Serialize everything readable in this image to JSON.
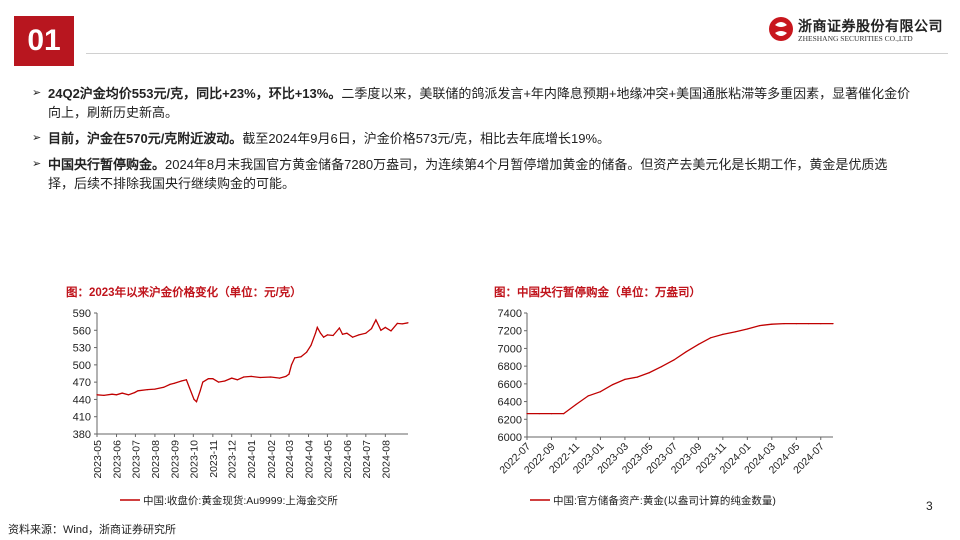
{
  "section_number": "01",
  "logo": {
    "name_cn": "浙商证券股份有限公司",
    "name_en": "ZHESHANG SECURITIES CO.,LTD"
  },
  "bullets": [
    {
      "bold": "24Q2沪金均价553元/克，同比+23%，环比+13%。",
      "text": "二季度以来，美联储的鸽派发言+年内降息预期+地缘冲突+美国通胀粘滞等多重因素，显著催化金价向上，刷新历史新高。"
    },
    {
      "bold": "目前，沪金在570元/克附近波动。",
      "text": "截至2024年9月6日，沪金价格573元/克，相比去年底增长19%。"
    },
    {
      "bold": "中国央行暂停购金。",
      "text": "2024年8月末我国官方黄金储备7280万盎司，为连续第4个月暂停增加黄金的储备。但资产去美元化是长期工作，黄金是优质选择，后续不排除我国央行继续购金的可能。"
    }
  ],
  "source": "资料来源：Wind，浙商证券研究所",
  "page_number": "3",
  "colors": {
    "accent": "#b8161f",
    "title_red": "#c0141c",
    "line": "#c00000"
  },
  "chart_data": [
    {
      "type": "line",
      "title": "图：2023年以来沪金价格变化（单位：元/克）",
      "x_ticks": [
        "2023-05",
        "2023-06",
        "2023-07",
        "2023-08",
        "2023-09",
        "2023-10",
        "2023-11",
        "2023-12",
        "2024-01",
        "2024-02",
        "2024-03",
        "2024-04",
        "2024-05",
        "2024-06",
        "2024-07",
        "2024-08"
      ],
      "ylim": [
        380,
        590
      ],
      "y_ticks": [
        380,
        410,
        440,
        470,
        500,
        530,
        560,
        590
      ],
      "x_range": [
        "2023-05-01",
        "2024-09-06"
      ],
      "series": [
        {
          "name": "中国:收盘价:黄金现货:Au9999:上海金交所",
          "points": [
            [
              "2023-05-01",
              448
            ],
            [
              "2023-05-12",
              447
            ],
            [
              "2023-05-25",
              449
            ],
            [
              "2023-06-01",
              448
            ],
            [
              "2023-06-10",
              451
            ],
            [
              "2023-06-20",
              448
            ],
            [
              "2023-06-30",
              452
            ],
            [
              "2023-07-05",
              455
            ],
            [
              "2023-07-20",
              457
            ],
            [
              "2023-08-01",
              458
            ],
            [
              "2023-08-15",
              461
            ],
            [
              "2023-08-25",
              466
            ],
            [
              "2023-09-01",
              468
            ],
            [
              "2023-09-12",
              472
            ],
            [
              "2023-09-20",
              474
            ],
            [
              "2023-09-25",
              460
            ],
            [
              "2023-10-02",
              440
            ],
            [
              "2023-10-06",
              436
            ],
            [
              "2023-10-12",
              455
            ],
            [
              "2023-10-16",
              470
            ],
            [
              "2023-10-25",
              476
            ],
            [
              "2023-11-01",
              476
            ],
            [
              "2023-11-10",
              470
            ],
            [
              "2023-11-20",
              472
            ],
            [
              "2023-12-01",
              477
            ],
            [
              "2023-12-10",
              474
            ],
            [
              "2023-12-20",
              479
            ],
            [
              "2024-01-01",
              480
            ],
            [
              "2024-01-15",
              478
            ],
            [
              "2024-02-01",
              479
            ],
            [
              "2024-02-15",
              477
            ],
            [
              "2024-02-25",
              480
            ],
            [
              "2024-03-01",
              484
            ],
            [
              "2024-03-05",
              500
            ],
            [
              "2024-03-10",
              512
            ],
            [
              "2024-03-20",
              514
            ],
            [
              "2024-03-29",
              522
            ],
            [
              "2024-04-05",
              534
            ],
            [
              "2024-04-12",
              555
            ],
            [
              "2024-04-15",
              565
            ],
            [
              "2024-04-20",
              555
            ],
            [
              "2024-04-25",
              548
            ],
            [
              "2024-05-01",
              552
            ],
            [
              "2024-05-10",
              551
            ],
            [
              "2024-05-20",
              564
            ],
            [
              "2024-05-25",
              553
            ],
            [
              "2024-06-01",
              555
            ],
            [
              "2024-06-10",
              548
            ],
            [
              "2024-06-20",
              552
            ],
            [
              "2024-07-01",
              555
            ],
            [
              "2024-07-10",
              563
            ],
            [
              "2024-07-17",
              578
            ],
            [
              "2024-07-25",
              560
            ],
            [
              "2024-08-01",
              565
            ],
            [
              "2024-08-10",
              559
            ],
            [
              "2024-08-20",
              572
            ],
            [
              "2024-08-28",
              571
            ],
            [
              "2024-09-06",
              573
            ]
          ]
        }
      ],
      "legend": "bottom"
    },
    {
      "type": "line",
      "title": "图：中国央行暂停购金（单位：万盎司）",
      "x": [
        "2022-07",
        "2022-08",
        "2022-09",
        "2022-10",
        "2022-11",
        "2022-12",
        "2023-01",
        "2023-02",
        "2023-03",
        "2023-04",
        "2023-05",
        "2023-06",
        "2023-07",
        "2023-08",
        "2023-09",
        "2023-10",
        "2023-11",
        "2023-12",
        "2024-01",
        "2024-02",
        "2024-03",
        "2024-04",
        "2024-05",
        "2024-06",
        "2024-07",
        "2024-08"
      ],
      "x_tick_labels": [
        "2022-07",
        "2022-09",
        "2022-11",
        "2023-01",
        "2023-03",
        "2023-05",
        "2023-07",
        "2023-09",
        "2023-11",
        "2024-01",
        "2024-03",
        "2024-05",
        "2024-07"
      ],
      "ylim": [
        6000,
        7400
      ],
      "y_ticks": [
        6000,
        6200,
        6400,
        6600,
        6800,
        7000,
        7200,
        7400
      ],
      "series": [
        {
          "name": "中国:官方储备资产:黄金(以盎司计算的纯金数量)",
          "values": [
            6264,
            6264,
            6264,
            6264,
            6367,
            6464,
            6512,
            6592,
            6650,
            6676,
            6727,
            6795,
            6869,
            6962,
            7046,
            7120,
            7158,
            7187,
            7219,
            7258,
            7274,
            7280,
            7280,
            7280,
            7280,
            7280
          ]
        }
      ],
      "legend": "bottom"
    }
  ]
}
